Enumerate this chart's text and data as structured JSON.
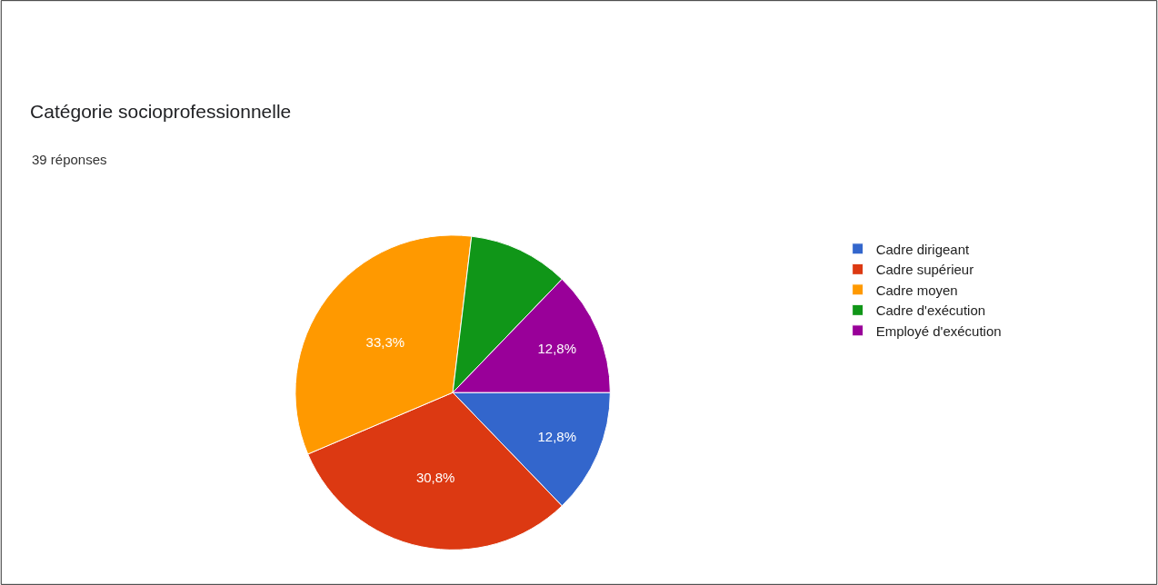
{
  "chart_data": {
    "type": "pie",
    "title": "Catégorie socioprofessionnelle",
    "subtitle": "39 réponses",
    "categories": [
      "Cadre dirigeant",
      "Cadre supérieur",
      "Cadre moyen",
      "Cadre d'exécution",
      "Employé d'exécution"
    ],
    "values": [
      12.8,
      30.8,
      33.3,
      10.3,
      12.8
    ],
    "value_labels": [
      "12,8%",
      "30,8%",
      "33,3%",
      null,
      "12,8%"
    ],
    "colors": [
      "#3366cc",
      "#dc3912",
      "#ff9900",
      "#109618",
      "#990099"
    ],
    "legend": "right"
  }
}
